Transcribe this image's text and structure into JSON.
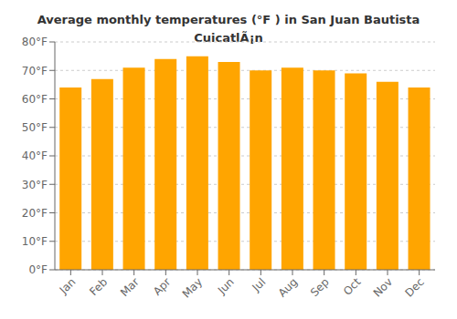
{
  "chart_data": {
    "type": "bar",
    "title": "Average monthly temperatures (°F ) in San Juan Bautista CuicatlÃ¡n",
    "categories": [
      "Jan",
      "Feb",
      "Mar",
      "Apr",
      "May",
      "Jun",
      "Jul",
      "Aug",
      "Sep",
      "Oct",
      "Nov",
      "Dec"
    ],
    "values": [
      64,
      67,
      71,
      74,
      75,
      73,
      70,
      71,
      70,
      69,
      66,
      64
    ],
    "color": "#FFA500",
    "ylim": [
      0,
      80
    ],
    "yticks": [
      {
        "value": 0,
        "label": "0°F"
      },
      {
        "value": 10,
        "label": "10°F"
      },
      {
        "value": 20,
        "label": "20°F"
      },
      {
        "value": 30,
        "label": "30°F"
      },
      {
        "value": 40,
        "label": "40°F"
      },
      {
        "value": 50,
        "label": "50°F"
      },
      {
        "value": 60,
        "label": "60°F"
      },
      {
        "value": 70,
        "label": "70°F"
      },
      {
        "value": 80,
        "label": "80°F"
      }
    ],
    "grid": true
  }
}
